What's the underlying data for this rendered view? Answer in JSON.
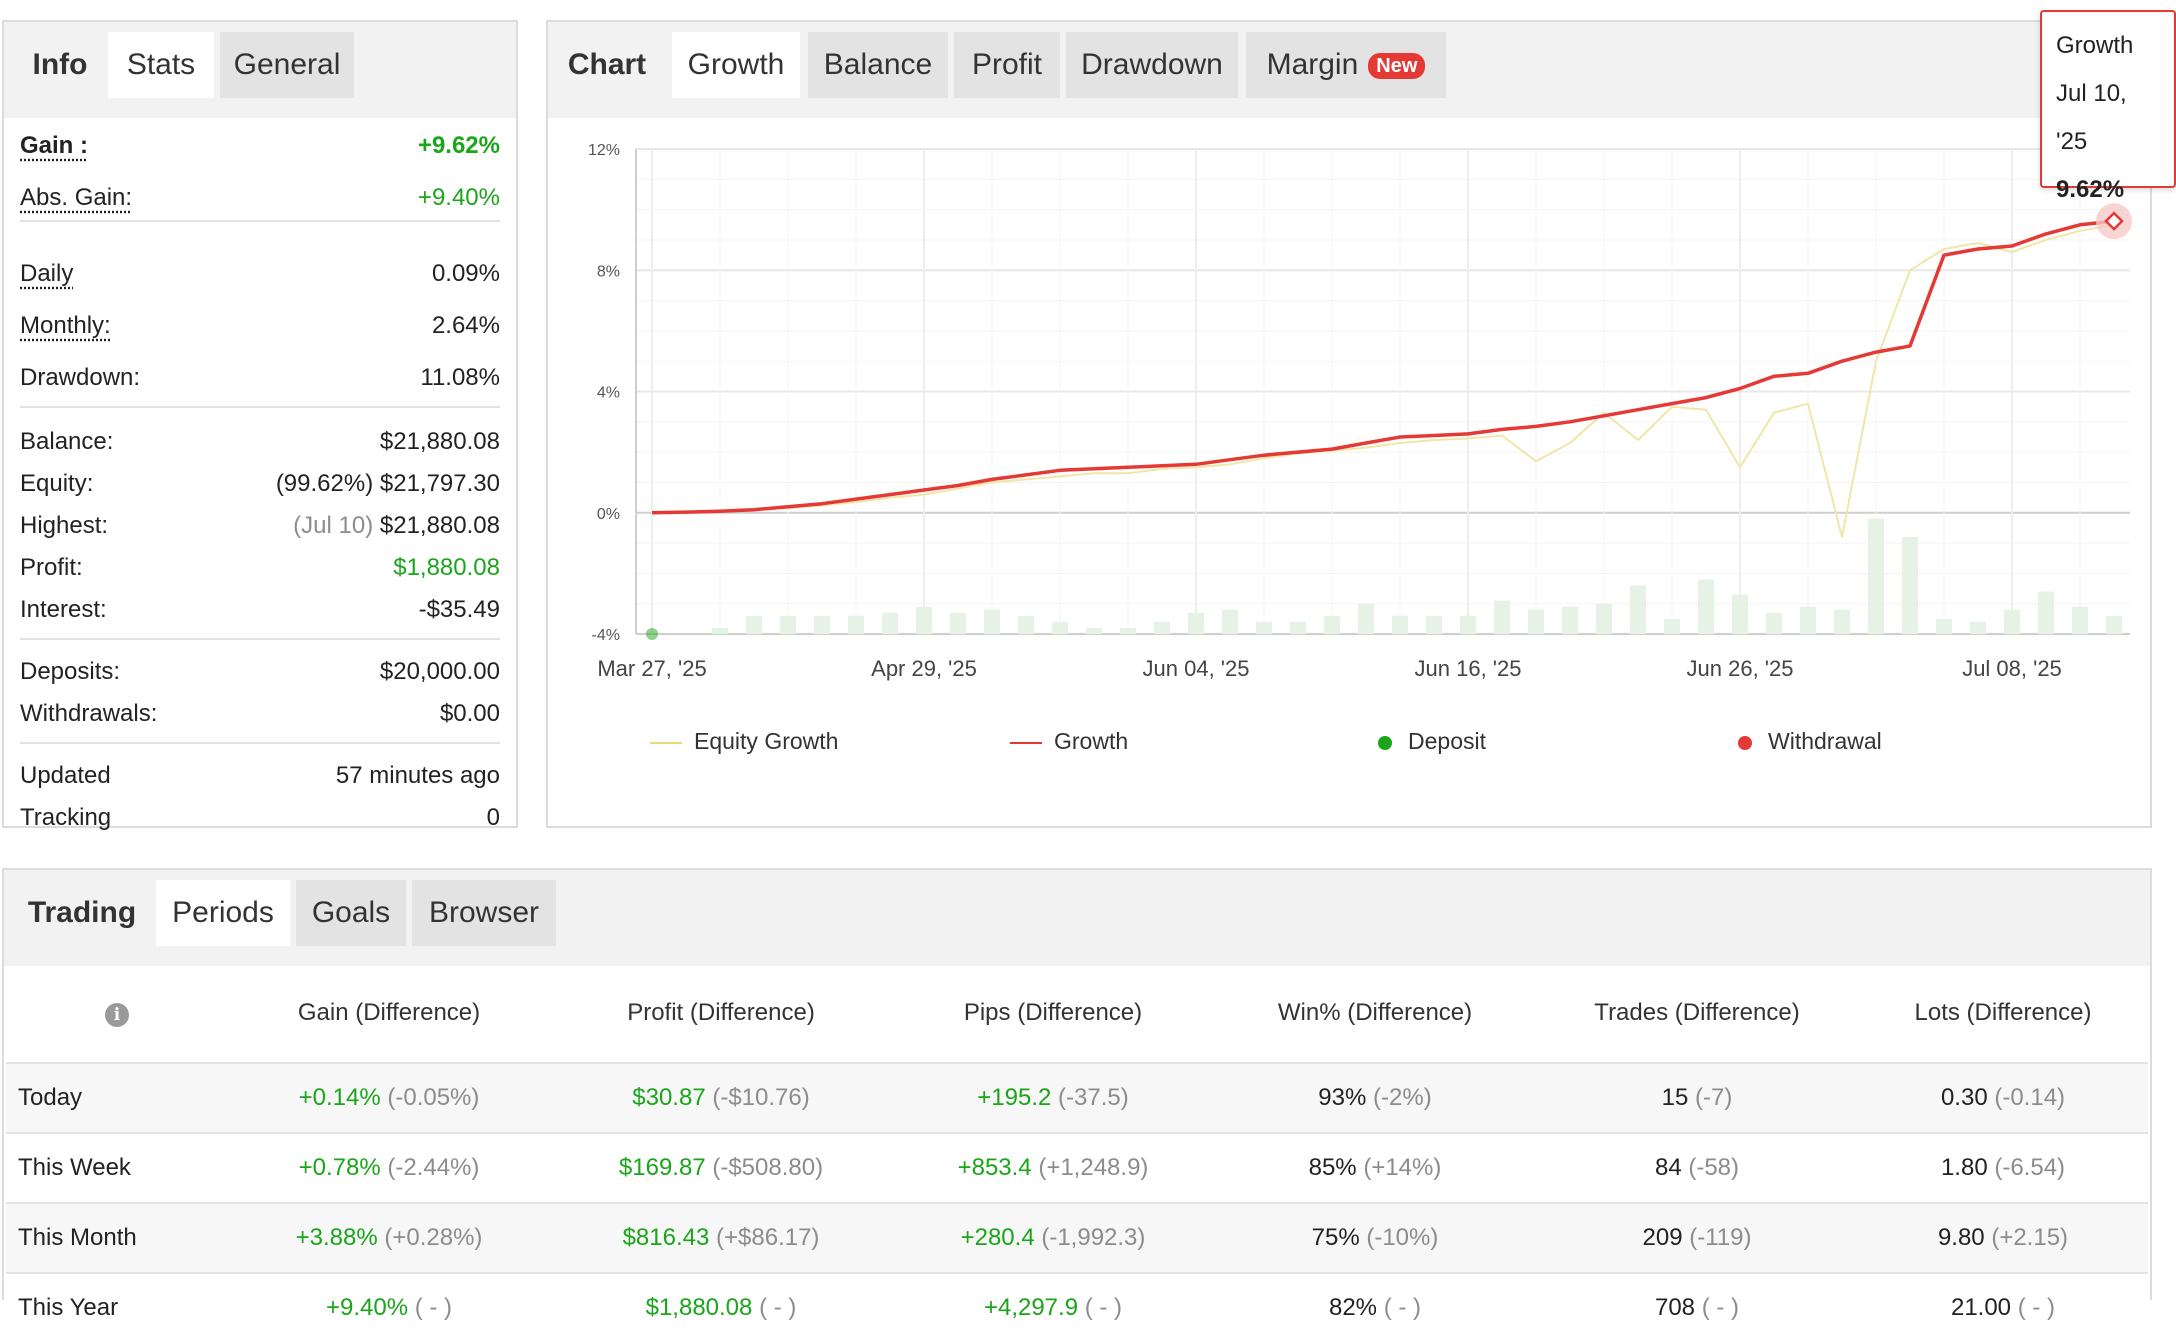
{
  "info_panel": {
    "tabs": [
      "Info",
      "Stats",
      "General"
    ],
    "rows": [
      {
        "label": "Gain :",
        "value": "+9.62%"
      },
      {
        "label": "Abs. Gain:",
        "value": "+9.40%"
      },
      {
        "label": "Daily",
        "value": "0.09%"
      },
      {
        "label": "Monthly:",
        "value": "2.64%"
      },
      {
        "label": "Drawdown:",
        "value": "11.08%"
      },
      {
        "label": "Balance:",
        "value": "$21,880.08"
      },
      {
        "label": "Equity:",
        "prefix": "(99.62%)",
        "value": "$21,797.30"
      },
      {
        "label": "Highest:",
        "prefix": "(Jul 10)",
        "value": "$21,880.08"
      },
      {
        "label": "Profit:",
        "value": "$1,880.08"
      },
      {
        "label": "Interest:",
        "value": "-$35.49"
      },
      {
        "label": "Deposits:",
        "value": "$20,000.00"
      },
      {
        "label": "Withdrawals:",
        "value": "$0.00"
      },
      {
        "label": "Updated",
        "value": "57 minutes ago"
      },
      {
        "label": "Tracking",
        "value": "0"
      }
    ]
  },
  "chart_panel": {
    "tabs": [
      "Chart",
      "Growth",
      "Balance",
      "Profit",
      "Drawdown",
      "Margin"
    ],
    "new_badge": "New",
    "tooltip": {
      "series": "Growth",
      "date": "Jul 10, '25",
      "value": "9.62%"
    }
  },
  "chart_data": {
    "type": "line",
    "x_ticks": [
      "Mar 27, '25",
      "Apr 29, '25",
      "Jun 04, '25",
      "Jun 16, '25",
      "Jun 26, '25",
      "Jul 08, '25"
    ],
    "y_ticks": [
      "12%",
      "8%",
      "4%",
      "0%",
      "-4%"
    ],
    "ylim": [
      -4,
      12
    ],
    "grid": true,
    "legend_position": "bottom",
    "legend": [
      "Equity Growth",
      "Growth",
      "Deposit",
      "Withdrawal"
    ],
    "colors": {
      "growth": "#e53935",
      "equity_growth": "#f0e6a8",
      "deposit": "#1aa51a",
      "withdrawal": "#e53935",
      "bars": "#e6f2e6"
    },
    "x_index": [
      0,
      1,
      2,
      3,
      4,
      5,
      6,
      7,
      8,
      9,
      10,
      11,
      12,
      13,
      14,
      15,
      16,
      17,
      18,
      19,
      20,
      21,
      22,
      23,
      24,
      25,
      26,
      27,
      28,
      29,
      30,
      31,
      32,
      33,
      34,
      35,
      36,
      37,
      38,
      39,
      40,
      41,
      42,
      43
    ],
    "series": [
      {
        "name": "Growth",
        "values": [
          0.0,
          0.02,
          0.05,
          0.1,
          0.2,
          0.3,
          0.45,
          0.6,
          0.75,
          0.9,
          1.1,
          1.25,
          1.4,
          1.45,
          1.5,
          1.55,
          1.6,
          1.75,
          1.9,
          2.0,
          2.1,
          2.3,
          2.5,
          2.55,
          2.6,
          2.75,
          2.85,
          3.0,
          3.2,
          3.4,
          3.6,
          3.8,
          4.1,
          4.5,
          4.6,
          5.0,
          5.3,
          5.5,
          8.5,
          8.7,
          8.8,
          9.2,
          9.5,
          9.62
        ]
      },
      {
        "name": "Equity Growth",
        "values": [
          0.0,
          0.02,
          0.05,
          0.1,
          0.15,
          0.25,
          0.35,
          0.5,
          0.6,
          0.8,
          1.0,
          1.1,
          1.2,
          1.3,
          1.3,
          1.45,
          1.5,
          1.6,
          1.8,
          1.95,
          2.05,
          2.15,
          2.3,
          2.4,
          2.45,
          2.55,
          1.7,
          2.3,
          3.3,
          2.4,
          3.5,
          3.4,
          1.5,
          3.3,
          3.6,
          -0.8,
          5.0,
          8.0,
          8.7,
          8.9,
          8.6,
          9.0,
          9.3,
          9.5
        ]
      }
    ],
    "bars": [
      0,
      0,
      0.2,
      0.6,
      0.6,
      0.6,
      0.6,
      0.7,
      0.9,
      0.7,
      0.8,
      0.6,
      0.4,
      0.2,
      0.2,
      0.4,
      0.7,
      0.8,
      0.4,
      0.4,
      0.6,
      1.0,
      0.6,
      0.6,
      0.6,
      1.1,
      0.8,
      0.9,
      1.0,
      1.6,
      0.5,
      1.8,
      1.3,
      0.7,
      0.9,
      0.8,
      3.8,
      3.2,
      0.5,
      0.4,
      0.8,
      1.4,
      0.9,
      0.6
    ]
  },
  "periods_panel": {
    "tabs": [
      "Trading",
      "Periods",
      "Goals",
      "Browser"
    ],
    "headers": [
      "Gain (Difference)",
      "Profit (Difference)",
      "Pips (Difference)",
      "Win% (Difference)",
      "Trades (Difference)",
      "Lots (Difference)"
    ],
    "rows": [
      {
        "label": "Today",
        "cells": [
          [
            "+0.14%",
            "(-0.05%)"
          ],
          [
            "$30.87",
            "(-$10.76)"
          ],
          [
            "+195.2",
            "(-37.5)"
          ],
          [
            "93%",
            "(-2%)"
          ],
          [
            "15",
            "(-7)"
          ],
          [
            "0.30",
            "(-0.14)"
          ]
        ]
      },
      {
        "label": "This Week",
        "cells": [
          [
            "+0.78%",
            "(-2.44%)"
          ],
          [
            "$169.87",
            "(-$508.80)"
          ],
          [
            "+853.4",
            "(+1,248.9)"
          ],
          [
            "85%",
            "(+14%)"
          ],
          [
            "84",
            "(-58)"
          ],
          [
            "1.80",
            "(-6.54)"
          ]
        ]
      },
      {
        "label": "This Month",
        "cells": [
          [
            "+3.88%",
            "(+0.28%)"
          ],
          [
            "$816.43",
            "(+$86.17)"
          ],
          [
            "+280.4",
            "(-1,992.3)"
          ],
          [
            "75%",
            "(-10%)"
          ],
          [
            "209",
            "(-119)"
          ],
          [
            "9.80",
            "(+2.15)"
          ]
        ]
      },
      {
        "label": "This Year",
        "cells": [
          [
            "+9.40%",
            "( - )"
          ],
          [
            "$1,880.08",
            "( - )"
          ],
          [
            "+4,297.9",
            "( - )"
          ],
          [
            "82%",
            "( - )"
          ],
          [
            "708",
            "( - )"
          ],
          [
            "21.00",
            "( - )"
          ]
        ]
      }
    ]
  }
}
